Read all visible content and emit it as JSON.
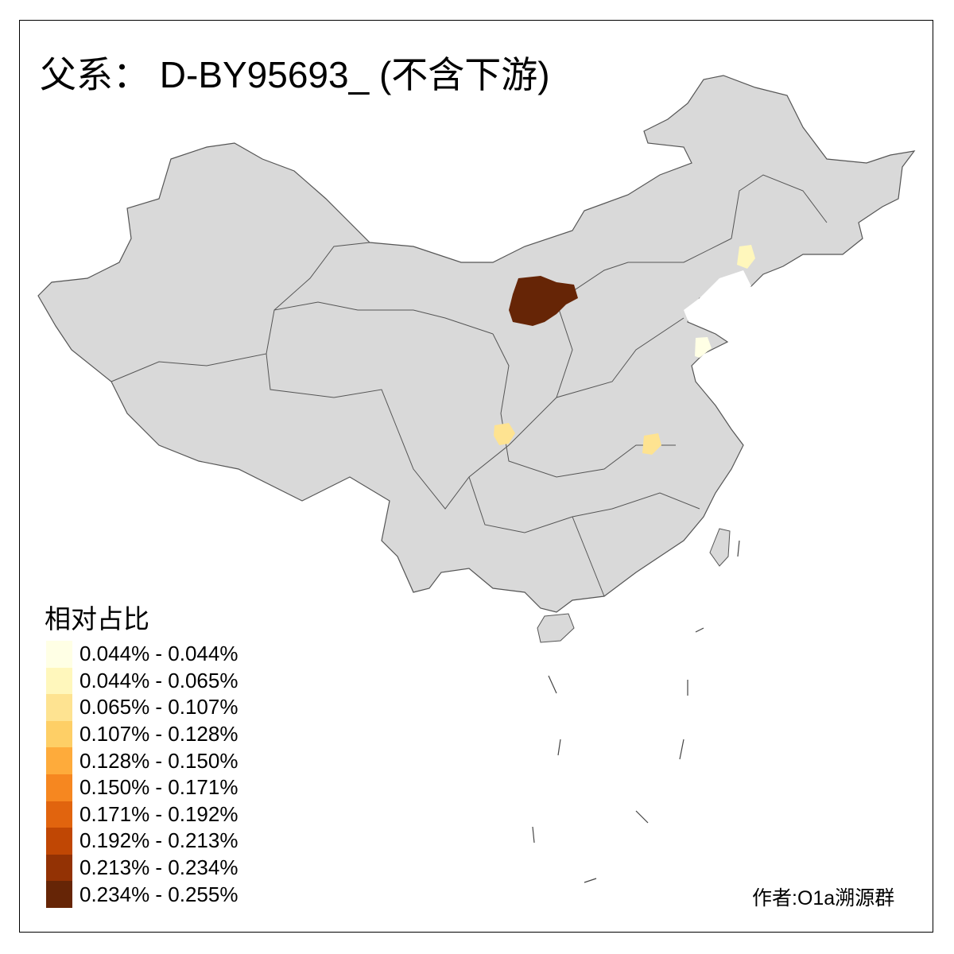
{
  "title": "父系： D-BY95693_ (不含下游)",
  "legend": {
    "title": "相对占比",
    "items": [
      {
        "label": "0.044% - 0.044%",
        "color": "#FFFFE5"
      },
      {
        "label": "0.044% - 0.065%",
        "color": "#FFF7BC"
      },
      {
        "label": "0.065% - 0.107%",
        "color": "#FEE391"
      },
      {
        "label": "0.107% - 0.128%",
        "color": "#FECF66"
      },
      {
        "label": "0.128% - 0.150%",
        "color": "#FEAB3B"
      },
      {
        "label": "0.150% - 0.171%",
        "color": "#F68720"
      },
      {
        "label": "0.171% - 0.192%",
        "color": "#E1640E"
      },
      {
        "label": "0.192% - 0.213%",
        "color": "#C04704"
      },
      {
        "label": "0.213% - 0.234%",
        "color": "#933204"
      },
      {
        "label": "0.234% - 0.255%",
        "color": "#662506"
      }
    ]
  },
  "map": {
    "base_color": "#D9D9D9",
    "border_color": "#555555",
    "highlighted_regions": [
      {
        "area": "northern-central (Ordos region)",
        "class": "0.234% - 0.255%",
        "color": "#662506"
      },
      {
        "area": "northeast",
        "class": "0.044% - 0.065%",
        "color": "#FFF7BC"
      },
      {
        "area": "eastern coast (Shandong peninsula)",
        "class": "0.044% - 0.044%",
        "color": "#FFFFE5"
      },
      {
        "area": "southwest (Sichuan basin)",
        "class": "0.065% - 0.107%",
        "color": "#FEE391"
      },
      {
        "area": "central-east",
        "class": "0.065% - 0.107%",
        "color": "#FEE391"
      }
    ]
  },
  "author": "作者:O1a溯源群"
}
